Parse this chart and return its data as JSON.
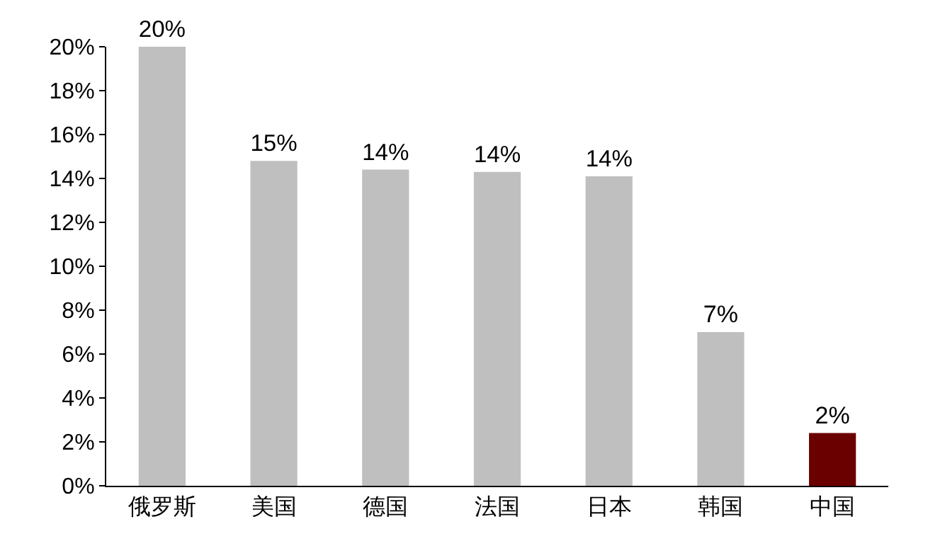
{
  "chart_data": {
    "type": "bar",
    "categories": [
      "俄罗斯",
      "美国",
      "德国",
      "法国",
      "日本",
      "韩国",
      "中国"
    ],
    "values": [
      20,
      14.8,
      14.4,
      14.3,
      14.1,
      7.0,
      2.4
    ],
    "value_labels": [
      "20%",
      "15%",
      "14%",
      "14%",
      "14%",
      "7%",
      "2%"
    ],
    "colors": [
      "#bfbfbf",
      "#bfbfbf",
      "#bfbfbf",
      "#bfbfbf",
      "#bfbfbf",
      "#bfbfbf",
      "#6b0000"
    ],
    "ylim": [
      0,
      20
    ],
    "yticks": [
      {
        "value": 0,
        "label": "0%"
      },
      {
        "value": 2,
        "label": "2%"
      },
      {
        "value": 4,
        "label": "4%"
      },
      {
        "value": 6,
        "label": "6%"
      },
      {
        "value": 8,
        "label": "8%"
      },
      {
        "value": 10,
        "label": "10%"
      },
      {
        "value": 12,
        "label": "12%"
      },
      {
        "value": 14,
        "label": "14%"
      },
      {
        "value": 16,
        "label": "16%"
      },
      {
        "value": 18,
        "label": "18%"
      },
      {
        "value": 20,
        "label": "20%"
      }
    ]
  }
}
